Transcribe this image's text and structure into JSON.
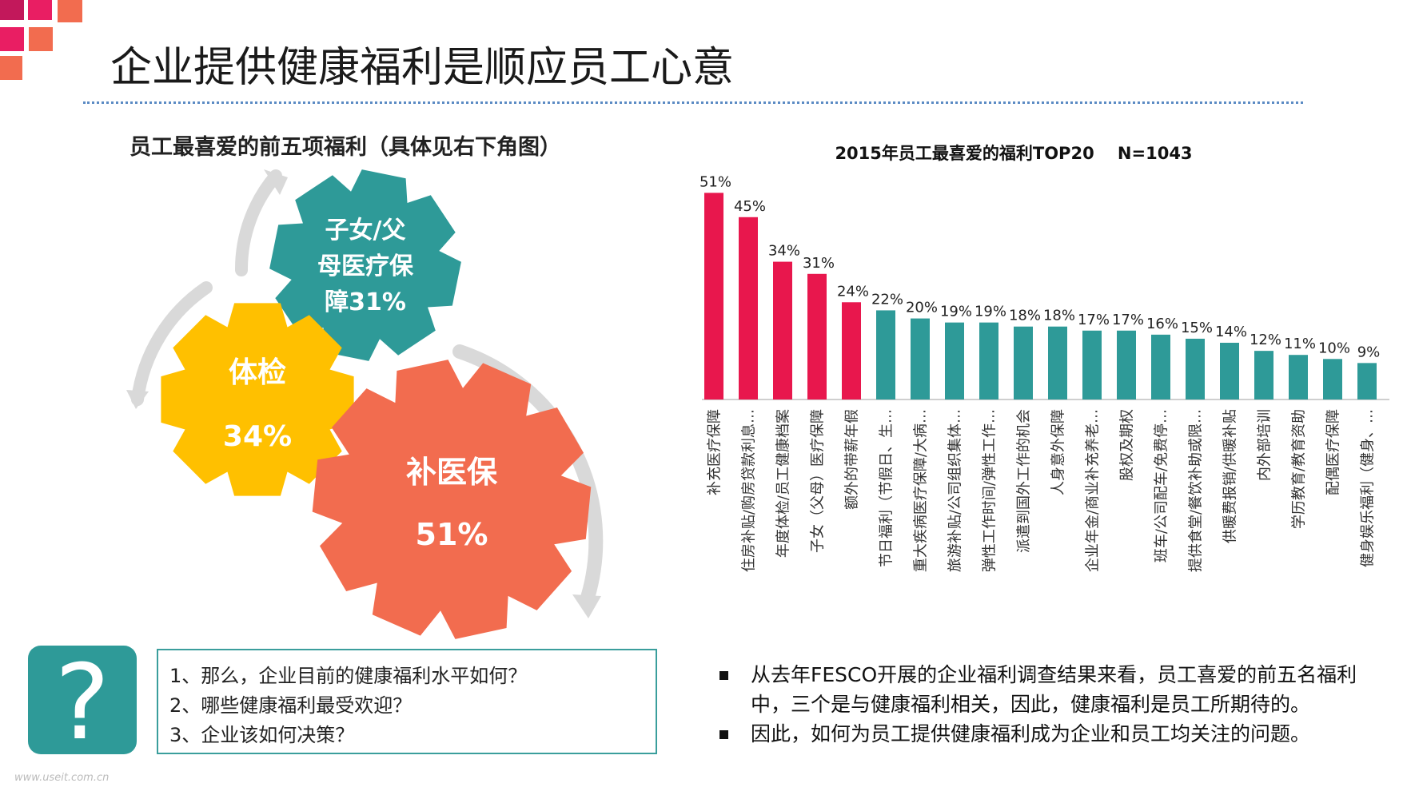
{
  "slide": {
    "title": "企业提供健康福利是顺应员工心意",
    "left_heading": "员工最喜爱的前五项福利（具体见右下角图）",
    "watermark": "www.useit.com.cn"
  },
  "gears": {
    "g1": {
      "line1": "子女/父",
      "line2": "母医疗保",
      "line3": "障31%"
    },
    "g2": {
      "line1": "体检",
      "line2": "34%"
    },
    "g3": {
      "line1": "补医保",
      "line2": "51%"
    }
  },
  "questions": [
    "1、那么，企业目前的健康福利水平如何？",
    "2、哪些健康福利最受欢迎？",
    "3、企业该如何决策？"
  ],
  "bullets": [
    "从去年FESCO开展的企业福利调查结果来看，员工喜爱的前五名福利中，三个是与健康福利相关，因此，健康福利是员工所期待的。",
    "因此，如何为员工提供健康福利成为企业和员工均关注的问题。"
  ],
  "colors": {
    "highlight": "#e8174d",
    "normal": "#2e9a98",
    "gear_teal": "#2e9a98",
    "gear_yellow": "#ffc000",
    "gear_orange": "#f26c4f"
  },
  "chart_data": {
    "type": "bar",
    "title": "2015年员工最喜爱的福利TOP20    N=1043",
    "categories": [
      "补充医疗保障",
      "住房补贴/购房贷款利息…",
      "年度体检/员工健康档案",
      "子女（父母）医疗保障",
      "额外的带薪年假",
      "节日福利（节假日、生…",
      "重大疾病医疗保障/大病…",
      "旅游补贴/公司组织集体…",
      "弹性工作时间/弹性工作…",
      "派遣到国外工作的机会",
      "人身意外保障",
      "企业年金/商业补充养老…",
      "股权及期权",
      "班车/公司配车/免费停…",
      "提供食堂/餐饮补助或限…",
      "供暖费报销/供暖补贴",
      "内外部培训",
      "学历教育/教育资助",
      "配偶医疗保障",
      "健身娱乐福利（健身、…"
    ],
    "labels": [
      "51%",
      "45%",
      "34%",
      "31%",
      "24%",
      "22%",
      "20%",
      "19%",
      "19%",
      "18%",
      "18%",
      "17%",
      "17%",
      "16%",
      "15%",
      "14%",
      "12%",
      "11%",
      "10%",
      "9%"
    ],
    "values": [
      51,
      45,
      34,
      31,
      24,
      22,
      20,
      19,
      19,
      18,
      18,
      17,
      17,
      16,
      15,
      14,
      12,
      11,
      10,
      9
    ],
    "highlight_count": 5,
    "ylim": [
      0,
      56
    ],
    "ylabel": "",
    "xlabel": ""
  }
}
